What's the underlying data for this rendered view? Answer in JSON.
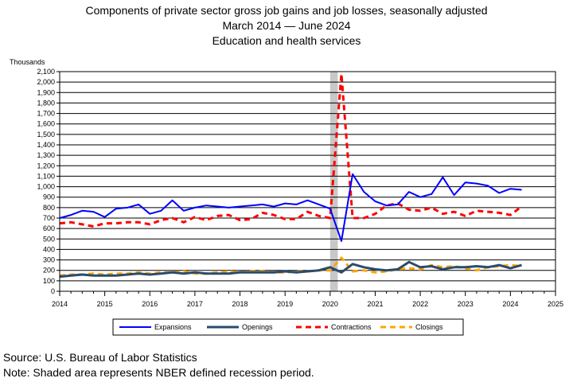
{
  "chart_data": {
    "type": "line",
    "title": "Components of private sector gross job gains and job losses, seasonally adjusted",
    "subtitle_period": "March 2014 — June 2024",
    "subtitle_industry": "Education and health services",
    "ylabel": "Thousands",
    "xlabel": "",
    "xlim": [
      2014,
      2025
    ],
    "ylim": [
      0,
      2100
    ],
    "y_ticks": [
      0,
      100,
      200,
      300,
      400,
      500,
      600,
      700,
      800,
      900,
      1000,
      1100,
      1200,
      1300,
      1400,
      1500,
      1600,
      1700,
      1800,
      1900,
      2000,
      2100
    ],
    "y_tick_labels": [
      "0",
      "100",
      "200",
      "300",
      "400",
      "500",
      "600",
      "700",
      "800",
      "900",
      "1,000",
      "1,100",
      "1,200",
      "1,300",
      "1,400",
      "1,500",
      "1,600",
      "1,700",
      "1,800",
      "1,900",
      "2,000",
      "2,100"
    ],
    "x_ticks": [
      2014,
      2015,
      2016,
      2017,
      2018,
      2019,
      2020,
      2021,
      2022,
      2023,
      2024,
      2025
    ],
    "x_tick_labels": [
      "2014",
      "2015",
      "2016",
      "2017",
      "2018",
      "2019",
      "2020",
      "2021",
      "2022",
      "2023",
      "2024",
      "2025"
    ],
    "grid": "horizontal",
    "legend_position": "bottom",
    "recession": {
      "start": 2020.0,
      "end": 2020.17,
      "color": "#c8c8c8"
    },
    "x": [
      2014.0,
      2014.25,
      2014.5,
      2014.75,
      2015.0,
      2015.25,
      2015.5,
      2015.75,
      2016.0,
      2016.25,
      2016.5,
      2016.75,
      2017.0,
      2017.25,
      2017.5,
      2017.75,
      2018.0,
      2018.25,
      2018.5,
      2018.75,
      2019.0,
      2019.25,
      2019.5,
      2019.75,
      2020.0,
      2020.25,
      2020.5,
      2020.75,
      2021.0,
      2021.25,
      2021.5,
      2021.75,
      2022.0,
      2022.25,
      2022.5,
      2022.75,
      2023.0,
      2023.25,
      2023.5,
      2023.75,
      2024.0,
      2024.25
    ],
    "series": [
      {
        "name": "Expansions",
        "color": "#0000ff",
        "style": "solid",
        "width": 2,
        "values": [
          700,
          730,
          770,
          760,
          710,
          790,
          800,
          830,
          740,
          770,
          870,
          770,
          800,
          820,
          810,
          800,
          810,
          820,
          830,
          810,
          840,
          830,
          870,
          830,
          790,
          480,
          1120,
          950,
          860,
          820,
          830,
          950,
          900,
          930,
          1090,
          920,
          1040,
          1030,
          1010,
          940,
          980,
          970
        ]
      },
      {
        "name": "Openings",
        "color": "#2a4b6e",
        "style": "solid",
        "width": 3,
        "values": [
          140,
          150,
          160,
          150,
          150,
          150,
          160,
          170,
          160,
          170,
          180,
          170,
          180,
          170,
          170,
          170,
          180,
          180,
          180,
          180,
          190,
          180,
          190,
          200,
          230,
          180,
          260,
          230,
          210,
          200,
          210,
          280,
          230,
          240,
          210,
          230,
          230,
          240,
          230,
          250,
          220,
          250
        ]
      },
      {
        "name": "Contractions",
        "color": "#ff0000",
        "style": "dashed",
        "width": 3,
        "values": [
          650,
          660,
          640,
          620,
          650,
          650,
          660,
          660,
          640,
          680,
          700,
          660,
          710,
          680,
          720,
          730,
          680,
          690,
          750,
          730,
          690,
          690,
          760,
          720,
          700,
          2080,
          700,
          700,
          740,
          820,
          840,
          780,
          770,
          800,
          740,
          760,
          720,
          770,
          760,
          750,
          730,
          810
        ]
      },
      {
        "name": "Closings",
        "color": "#ffa500",
        "style": "dashed",
        "width": 3,
        "values": [
          150,
          160,
          160,
          170,
          160,
          170,
          170,
          180,
          170,
          180,
          180,
          190,
          170,
          170,
          180,
          190,
          180,
          190,
          190,
          180,
          180,
          190,
          190,
          200,
          200,
          320,
          190,
          200,
          180,
          190,
          210,
          220,
          210,
          250,
          230,
          240,
          220,
          200,
          230,
          240,
          250,
          240
        ]
      }
    ]
  },
  "footer": {
    "source": "Source: U.S. Bureau of Labor Statistics",
    "note": "Note: Shaded area represents NBER defined recession period."
  }
}
